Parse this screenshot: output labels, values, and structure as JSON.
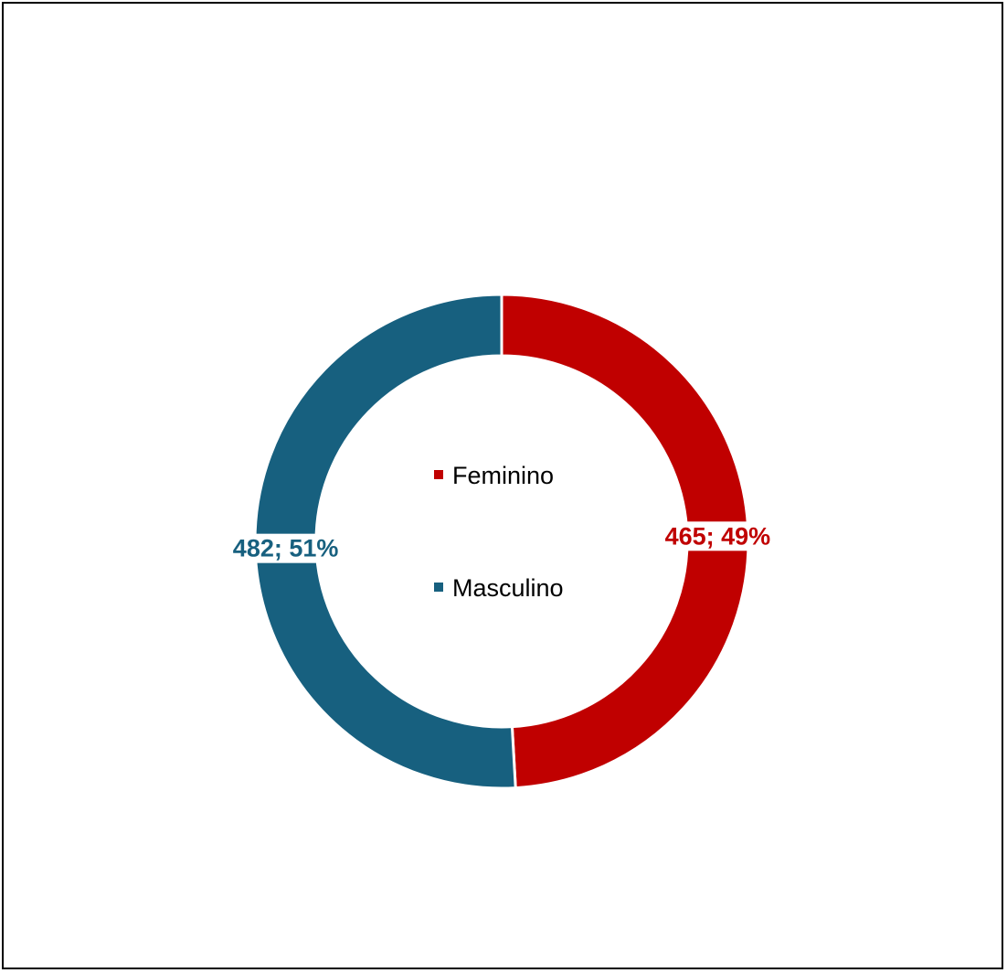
{
  "chart_data": {
    "type": "pie",
    "variant": "donut",
    "categories": [
      "Feminino",
      "Masculino"
    ],
    "values": [
      465,
      482
    ],
    "percentages": [
      49,
      51
    ],
    "labels": [
      "465; 49%",
      "482; 51%"
    ],
    "colors": [
      "#c00000",
      "#17607f"
    ],
    "legend": {
      "position": "center",
      "entries": [
        "Feminino",
        "Masculino"
      ]
    },
    "title": "",
    "start_angle": "top",
    "direction": "clockwise"
  }
}
